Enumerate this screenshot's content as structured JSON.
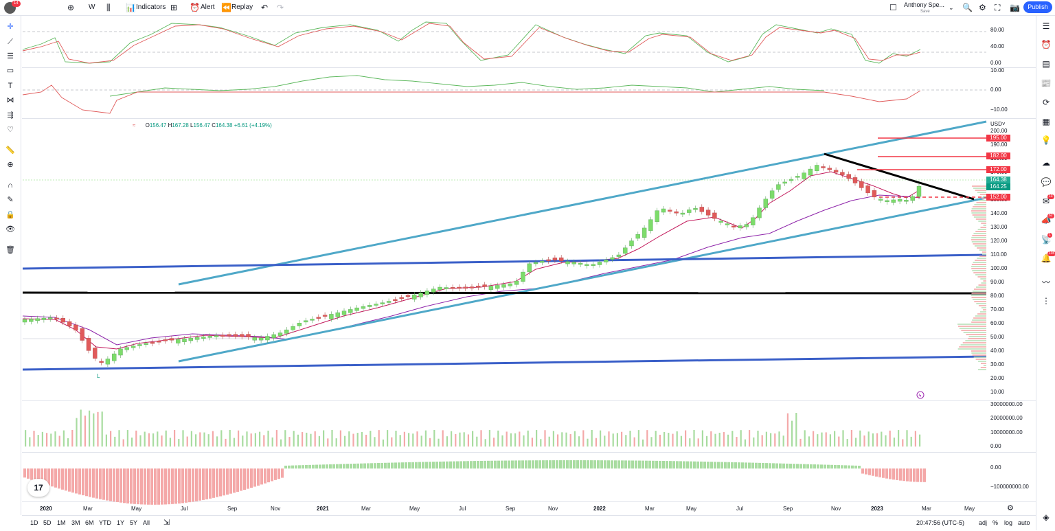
{
  "topbar": {
    "notification_count": "14",
    "interval": "W",
    "indicators_label": "Indicators",
    "alert_label": "Alert",
    "replay_label": "Replay",
    "account_name": "Anthony Spe...",
    "save_label": "Save",
    "publish_label": "Publish"
  },
  "legend": {
    "open_label": "O",
    "open": "156.47",
    "high_label": "H",
    "high": "167.28",
    "low_label": "L",
    "low": "156.47",
    "close_label": "C",
    "close": "164.38",
    "change": "+6.61 (+4.19%)"
  },
  "currency": "USD",
  "stoch_axis": [
    "80.00",
    "40.00",
    "0.00"
  ],
  "osc_axis": [
    "10.00",
    "0.00",
    "−10.00"
  ],
  "price_axis": [
    "200.00",
    "190.00",
    "180.00",
    "170.00",
    "160.00",
    "150.00",
    "140.00",
    "130.00",
    "120.00",
    "110.00",
    "100.00",
    "90.00",
    "80.00",
    "70.00",
    "60.00",
    "50.00",
    "40.00",
    "30.00",
    "20.00",
    "10.00"
  ],
  "price_tags": [
    {
      "value": "195.00",
      "color": "#f23645"
    },
    {
      "value": "182.00",
      "color": "#f23645"
    },
    {
      "value": "172.00",
      "color": "#f23645"
    },
    {
      "value": "164.38",
      "color": "#22ab94"
    },
    {
      "value": "164.25",
      "color": "#089981"
    },
    {
      "value": "152.00",
      "color": "#f23645"
    }
  ],
  "volume_axis": [
    "30000000.00",
    "20000000.00",
    "10000000.00",
    "0.00"
  ],
  "lower_axis": [
    "0.00",
    "−100000000.00"
  ],
  "time_axis": [
    {
      "label": "2020",
      "bold": true
    },
    {
      "label": "Mar",
      "bold": false
    },
    {
      "label": "May",
      "bold": false
    },
    {
      "label": "Jul",
      "bold": false
    },
    {
      "label": "Sep",
      "bold": false
    },
    {
      "label": "Nov",
      "bold": false
    },
    {
      "label": "2021",
      "bold": true
    },
    {
      "label": "Mar",
      "bold": false
    },
    {
      "label": "May",
      "bold": false
    },
    {
      "label": "Jul",
      "bold": false
    },
    {
      "label": "Sep",
      "bold": false
    },
    {
      "label": "Nov",
      "bold": false
    },
    {
      "label": "2022",
      "bold": true
    },
    {
      "label": "Mar",
      "bold": false
    },
    {
      "label": "May",
      "bold": false
    },
    {
      "label": "Jul",
      "bold": false
    },
    {
      "label": "Sep",
      "bold": false
    },
    {
      "label": "Nov",
      "bold": false
    },
    {
      "label": "2023",
      "bold": true
    },
    {
      "label": "Mar",
      "bold": false
    },
    {
      "label": "May",
      "bold": false
    }
  ],
  "low_marker": "L",
  "ranges": [
    "1D",
    "5D",
    "1M",
    "3M",
    "6M",
    "YTD",
    "1Y",
    "5Y",
    "All"
  ],
  "clock": "20:47:56 (UTC-5)",
  "scale_options": [
    "adj",
    "%",
    "log",
    "auto"
  ],
  "right_badges": [
    "13",
    "62",
    "1",
    "135"
  ],
  "colors": {
    "up": "#7ddc6b",
    "down": "#e05a5a",
    "channel": "#4fa8c8",
    "support": "#3a5fc8",
    "accent": "#2962ff"
  }
}
